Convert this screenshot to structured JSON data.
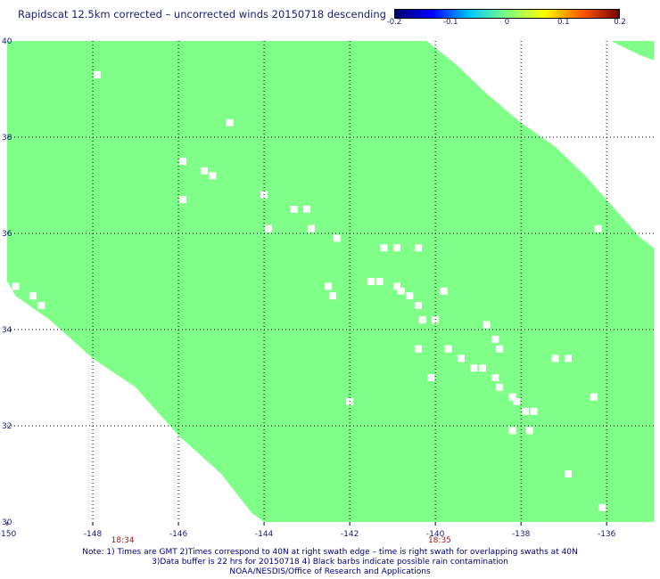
{
  "title": "Rapidscat 12.5km corrected – uncorrected winds 20150718 descending",
  "colorbar": {
    "stops": [
      "#00006e",
      "#0000ff",
      "#00c8ff",
      "#7fff7f",
      "#ffff00",
      "#ff5a00",
      "#780000"
    ],
    "tick_labels": [
      "-0.2",
      "-0.1",
      "0",
      "0.1",
      "0.2"
    ],
    "range": [
      -0.2,
      0.2
    ]
  },
  "time_labels": [
    {
      "text": "18:34",
      "lon": -147.3
    },
    {
      "text": "18:35",
      "lon": -139.9
    }
  ],
  "notes": [
    "Note: 1) Times are GMT 2)Times correspond to 40N at right swath edge – time is right swath for overlapping swaths at 40N",
    "3)Data buffer is 22 hrs for 20150718 4) Black barbs indicate possible rain contamination",
    "NOAA/NESDIS/Office of Research and Applications"
  ],
  "chart_data": {
    "type": "heatmap",
    "title": "Rapidscat 12.5km corrected – uncorrected winds 20150718 descending",
    "xlabel": "",
    "ylabel": "",
    "x_ticks": [
      -150,
      -148,
      -146,
      -144,
      -142,
      -140,
      -138,
      -136
    ],
    "x_tick_labels": [
      "-150",
      "-148",
      "-146",
      "-144",
      "-142",
      "-140",
      "-138",
      "-136"
    ],
    "y_ticks": [
      30,
      32,
      34,
      36,
      38,
      40
    ],
    "y_tick_labels": [
      "30",
      "32",
      "34",
      "36",
      "38",
      "40"
    ],
    "xlim": [
      -150,
      -134.9
    ],
    "ylim": [
      30,
      40
    ],
    "grid": true,
    "fill_value": 0,
    "fill_color": "#7fff87",
    "swath_boundary": {
      "upper_edge": [
        [
          -140.2,
          40
        ],
        [
          -139.5,
          39.5
        ],
        [
          -138.8,
          38.9
        ],
        [
          -138,
          38.3
        ],
        [
          -137.2,
          37.8
        ],
        [
          -136.5,
          37.2
        ],
        [
          -135.8,
          36.5
        ],
        [
          -135.2,
          35.9
        ],
        [
          -134.9,
          35.7
        ]
      ],
      "lower_edge": [
        [
          -150,
          35.0
        ],
        [
          -149.8,
          34.7
        ],
        [
          -149.0,
          34.2
        ],
        [
          -148.0,
          33.4
        ],
        [
          -147.0,
          32.8
        ],
        [
          -146.0,
          31.8
        ],
        [
          -145.0,
          31.0
        ],
        [
          -144.3,
          30.2
        ],
        [
          -144.0,
          30.0
        ]
      ],
      "top_right_segment": [
        [
          -135.9,
          40
        ],
        [
          -135.2,
          39.7
        ],
        [
          -134.9,
          39.6
        ]
      ]
    },
    "missing_cells": [
      [
        -147.9,
        39.3
      ],
      [
        -144.8,
        38.3
      ],
      [
        -145.9,
        37.5
      ],
      [
        -145.4,
        37.3
      ],
      [
        -145.2,
        37.2
      ],
      [
        -145.9,
        36.7
      ],
      [
        -144.0,
        36.8
      ],
      [
        -143.3,
        36.5
      ],
      [
        -143.0,
        36.5
      ],
      [
        -143.9,
        36.1
      ],
      [
        -142.9,
        36.1
      ],
      [
        -142.3,
        35.9
      ],
      [
        -141.2,
        35.7
      ],
      [
        -140.9,
        35.7
      ],
      [
        -140.4,
        35.7
      ],
      [
        -141.5,
        35.0
      ],
      [
        -141.3,
        35.0
      ],
      [
        -140.8,
        34.8
      ],
      [
        -140.6,
        34.7
      ],
      [
        -140.4,
        34.5
      ],
      [
        -139.8,
        34.8
      ],
      [
        -140.9,
        34.9
      ],
      [
        -142.5,
        34.9
      ],
      [
        -142.4,
        34.7
      ],
      [
        -140.3,
        34.2
      ],
      [
        -140.0,
        34.2
      ],
      [
        -138.8,
        34.1
      ],
      [
        -138.6,
        33.8
      ],
      [
        -138.5,
        33.6
      ],
      [
        -140.4,
        33.6
      ],
      [
        -139.7,
        33.6
      ],
      [
        -139.4,
        33.4
      ],
      [
        -139.1,
        33.2
      ],
      [
        -138.9,
        33.2
      ],
      [
        -140.1,
        33.0
      ],
      [
        -138.6,
        33.0
      ],
      [
        -138.5,
        32.8
      ],
      [
        -138.2,
        32.6
      ],
      [
        -138.1,
        32.5
      ],
      [
        -137.9,
        32.3
      ],
      [
        -137.7,
        32.3
      ],
      [
        -137.8,
        31.9
      ],
      [
        -138.2,
        31.9
      ],
      [
        -136.3,
        32.6
      ],
      [
        -142.0,
        32.5
      ],
      [
        -137.2,
        33.4
      ],
      [
        -136.9,
        31.0
      ],
      [
        -136.1,
        30.3
      ],
      [
        -136.2,
        36.1
      ],
      [
        -149.8,
        34.9
      ],
      [
        -149.4,
        34.7
      ],
      [
        -149.2,
        34.5
      ],
      [
        -136.9,
        33.4
      ]
    ]
  }
}
